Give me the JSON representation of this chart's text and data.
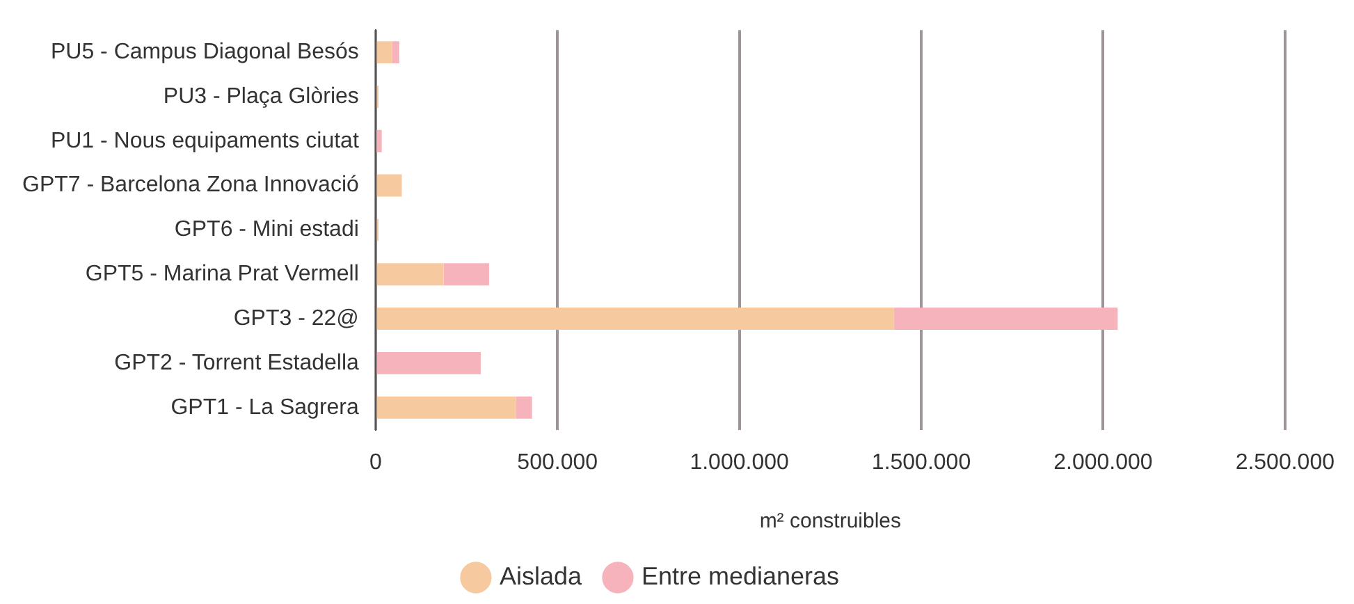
{
  "chart_data": {
    "type": "bar",
    "orientation": "horizontal",
    "stacked": true,
    "categories": [
      "PU5 - Campus Diagonal Besós",
      "PU3 - Plaça Glòries",
      "PU1 - Nous equipaments ciutat",
      "GPT7 - Barcelona Zona Innovació",
      "GPT6 - Mini estadi",
      "GPT5 - Marina Prat Vermell",
      "GPT3 - 22@",
      "GPT2 - Torrent Estadella",
      "GPT1 - La Sagrera"
    ],
    "series": [
      {
        "name": "Aislada",
        "color": "#f6c99e",
        "values": [
          46000,
          8000,
          3000,
          72000,
          8000,
          187000,
          1425000,
          0,
          386000
        ]
      },
      {
        "name": "Entre medianeras",
        "color": "#f6b3bb",
        "values": [
          19000,
          0,
          14000,
          0,
          0,
          125000,
          615000,
          289000,
          44000
        ]
      }
    ],
    "xlim": [
      0,
      2500000
    ],
    "xticks": [
      0,
      {
        "value": 500000,
        "label": "500.000"
      },
      {
        "value": 1000000,
        "label": "1.000.000"
      },
      {
        "value": 1500000,
        "label": "1.500.000"
      },
      {
        "value": 2000000,
        "label": "2.000.000"
      },
      {
        "value": 2500000,
        "label": "2.500.000"
      }
    ],
    "xlabel": "m² construibles",
    "grid": "x",
    "legend": "bottom"
  }
}
